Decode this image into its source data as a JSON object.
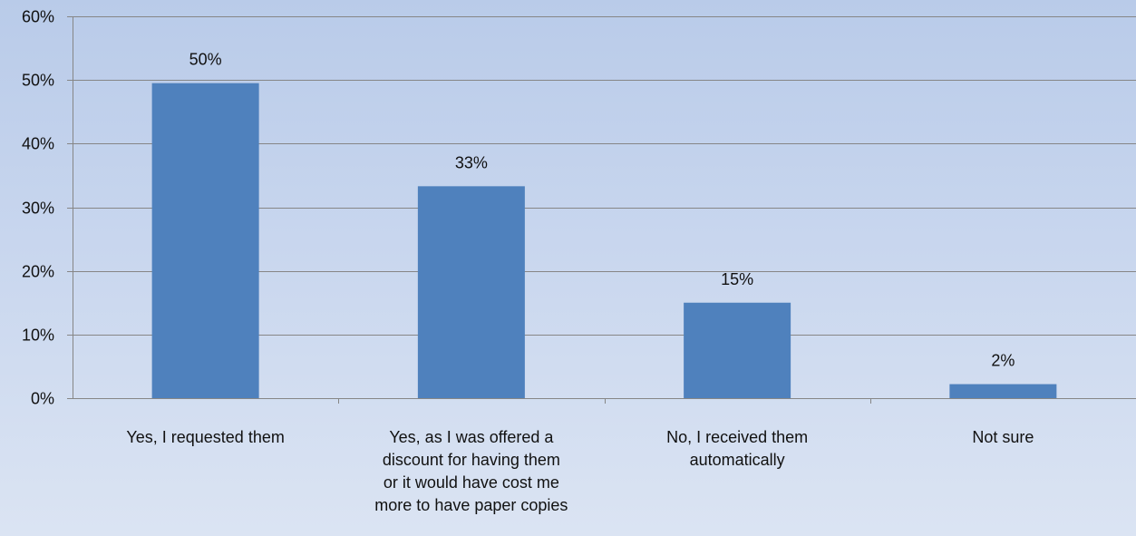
{
  "chart_data": {
    "type": "bar",
    "categories": [
      [
        "Yes, I requested them"
      ],
      [
        "Yes, as I was offered a",
        "discount for having them",
        "or it would have cost me",
        "more to have paper copies"
      ],
      [
        "No, I received them",
        "automatically"
      ],
      [
        "Not sure"
      ]
    ],
    "values": [
      49.5,
      33.3,
      15,
      2.2
    ],
    "data_labels": [
      "50%",
      "33%",
      "15%",
      "2%"
    ],
    "ylim": [
      0,
      60
    ],
    "yticks": [
      0,
      10,
      20,
      30,
      40,
      50,
      60
    ],
    "ytick_labels": [
      "0%",
      "10%",
      "20%",
      "30%",
      "40%",
      "50%",
      "60%"
    ],
    "title": "",
    "xlabel": "",
    "ylabel": "",
    "grid": true,
    "legend": "none",
    "bar_color": "#4f81bd"
  }
}
